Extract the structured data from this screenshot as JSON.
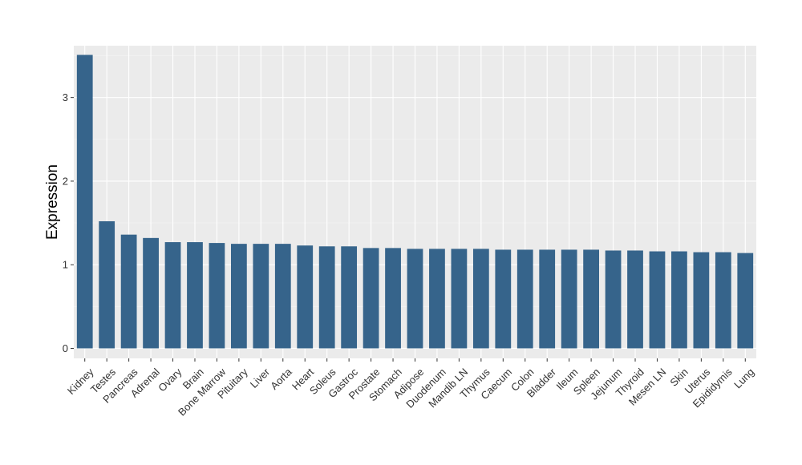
{
  "chart_data": {
    "type": "bar",
    "title": "",
    "xlabel": "",
    "ylabel": "Expression",
    "ylim": [
      -0.12,
      3.62
    ],
    "yticks": [
      0,
      1,
      2,
      3
    ],
    "ytick_labels": [
      "0",
      "1",
      "2",
      "3"
    ],
    "grid": true,
    "background": "ggplot-grey",
    "categories": [
      "Kidney",
      "Testes",
      "Pancreas",
      "Adrenal",
      "Ovary",
      "Brain",
      "Bone Marrow",
      "Pituitary",
      "Liver",
      "Aorta",
      "Heart",
      "Soleus",
      "Gastroc",
      "Prostate",
      "Stomach",
      "Adipose",
      "Duodenum",
      "Mandib LN",
      "Thymus",
      "Caecum",
      "Colon",
      "Bladder",
      "Ileum",
      "Spleen",
      "Jejunum",
      "Thyroid",
      "Mesen LN",
      "Skin",
      "Uterus",
      "Epididymis",
      "Lung"
    ],
    "values": [
      3.51,
      1.52,
      1.36,
      1.32,
      1.27,
      1.27,
      1.26,
      1.25,
      1.25,
      1.25,
      1.23,
      1.22,
      1.22,
      1.2,
      1.2,
      1.19,
      1.19,
      1.19,
      1.19,
      1.18,
      1.18,
      1.18,
      1.18,
      1.18,
      1.17,
      1.17,
      1.16,
      1.16,
      1.15,
      1.15,
      1.14
    ],
    "colors": {
      "bar": "#36648b",
      "panel": "#ebebeb",
      "grid_major": "#ffffff",
      "grid_minor": "#f5f5f5",
      "tick": "#333333"
    }
  }
}
